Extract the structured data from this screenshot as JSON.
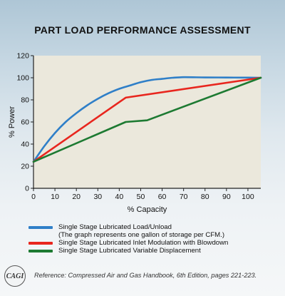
{
  "chart_data": {
    "type": "line",
    "title": "PART LOAD PERFORMANCE ASSESSMENT",
    "xlabel": "% Capacity",
    "ylabel": "% Power",
    "xlim": [
      0,
      106
    ],
    "ylim": [
      0,
      120
    ],
    "xticks": [
      0,
      10,
      20,
      30,
      40,
      50,
      60,
      70,
      80,
      90,
      100
    ],
    "yticks": [
      0,
      20,
      40,
      60,
      80,
      100,
      120
    ],
    "grid": false,
    "plot_background": "#ebe8dc",
    "series": [
      {
        "name": "Single Stage Lubricated Load/Unload",
        "color": "#2f7fc8",
        "x": [
          0,
          5,
          10,
          15,
          20,
          25,
          30,
          35,
          40,
          45,
          50,
          55,
          60,
          65,
          70,
          80,
          90,
          100,
          106
        ],
        "y": [
          24,
          38,
          50,
          60,
          68,
          75,
          81,
          86,
          90,
          93,
          96,
          98,
          99,
          100,
          100.5,
          100.3,
          100.2,
          100.1,
          100
        ]
      },
      {
        "name": "Single Stage Lubricated Inlet Modulation with Blowdown",
        "color": "#e8261e",
        "x": [
          0,
          43,
          106
        ],
        "y": [
          24,
          82,
          100
        ]
      },
      {
        "name": "Single Stage Lubricated Variable Displacement",
        "color": "#1d7a32",
        "x": [
          0,
          43,
          53,
          106
        ],
        "y": [
          24,
          60,
          61.5,
          100
        ]
      }
    ],
    "legend_note": "(The graph represents one gallon of storage per CFM.)"
  },
  "footer": {
    "logo_text": "CAGI",
    "reference": "Reference: Compressed Air and Gas Handbook, 6th Edition, pages 221-223."
  }
}
